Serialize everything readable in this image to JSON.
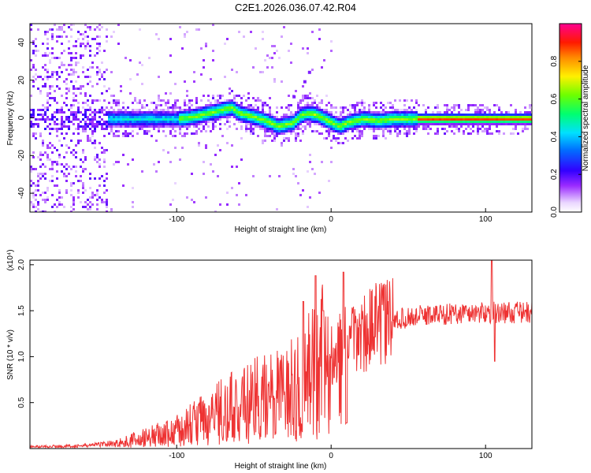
{
  "title": "C2E1.2026.036.07.42.R04",
  "chart_data": [
    {
      "type": "heatmap",
      "xlabel": "Height of straight line (km)",
      "ylabel": "Frequency (Hz)",
      "xlim": [
        -195,
        130
      ],
      "ylim": [
        -50,
        50
      ],
      "x_ticks": [
        -100,
        0,
        100
      ],
      "x_tick_labels": [
        "-100",
        "0",
        "100"
      ],
      "y_ticks": [
        -40,
        -20,
        0,
        20,
        40
      ],
      "y_tick_labels": [
        "-40",
        "-20",
        "0",
        "20",
        "40"
      ],
      "colorbar": {
        "label": "Normalized spectral amplitude",
        "range": [
          0,
          1
        ],
        "ticks": [
          0,
          0.2,
          0.4,
          0.6,
          0.8
        ],
        "tick_labels": [
          "0.0",
          "0.2",
          "0.4",
          "0.6",
          "0.8"
        ]
      },
      "centerline": {
        "x": [
          -180,
          -160,
          -140,
          -120,
          -100,
          -90,
          -80,
          -70,
          -65,
          -60,
          -50,
          -40,
          -35,
          -30,
          -25,
          -20,
          -15,
          -10,
          -5,
          0,
          5,
          10,
          20,
          30,
          40,
          50,
          60,
          80,
          100,
          120,
          130
        ],
        "y": [
          0,
          0,
          0,
          0,
          0,
          1,
          3,
          5,
          6,
          3,
          1,
          -2,
          -4,
          -3,
          -2,
          2,
          3,
          2,
          0,
          -2,
          -4,
          -2,
          0,
          -1,
          0,
          0,
          0,
          0,
          0,
          0,
          0
        ]
      }
    },
    {
      "type": "line",
      "xlabel": "Height of straight line (km)",
      "ylabel": "SNR (10 * v/v)",
      "y_multiplier": "(x10⁴)",
      "xlim": [
        -195,
        130
      ],
      "ylim": [
        0,
        20500
      ],
      "x_ticks": [
        -100,
        0,
        100
      ],
      "x_tick_labels": [
        "-100",
        "0",
        "100"
      ],
      "y_ticks": [
        5000,
        10000,
        15000,
        20000
      ],
      "y_tick_labels": [
        "0.5",
        "1.0",
        "1.5",
        "2.0"
      ],
      "color": "#ee3333",
      "envelope": {
        "x": [
          -195,
          -160,
          -140,
          -120,
          -100,
          -80,
          -60,
          -40,
          -20,
          -10,
          0,
          10,
          20,
          30,
          40,
          60,
          80,
          100,
          130
        ],
        "y": [
          200,
          300,
          600,
          1200,
          2000,
          3500,
          4800,
          5800,
          7000,
          9000,
          10500,
          11500,
          12500,
          13500,
          14000,
          14500,
          14700,
          14800,
          14800
        ]
      },
      "spikes": [
        {
          "x": -18,
          "y": 16000
        },
        {
          "x": -10,
          "y": 18800
        },
        {
          "x": -5,
          "y": 15000
        },
        {
          "x": 8,
          "y": 19200
        },
        {
          "x": 10,
          "y": 2800
        },
        {
          "x": 104,
          "y": 20500
        },
        {
          "x": 106,
          "y": 9500
        }
      ]
    }
  ]
}
